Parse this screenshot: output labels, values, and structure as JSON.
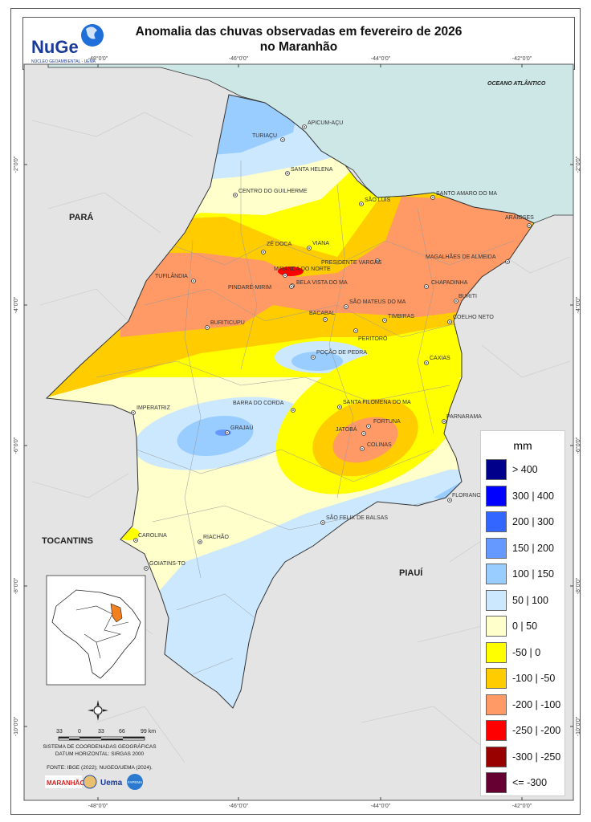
{
  "header": {
    "title_line1": "Anomalia das chuvas observadas em fevereiro de 2026",
    "title_line2": "no Maranhão",
    "logo_text": "NuGeo",
    "logo_subtitle": "NÚCLEO GEOAMBIENTAL - UEMA"
  },
  "coordinates": {
    "longitudes": [
      "-48°0'0\"",
      "-46°0'0\"",
      "-44°0'0\"",
      "-42°0'0\""
    ],
    "latitudes": [
      "-2°0'0\"",
      "-4°0'0\"",
      "-6°0'0\"",
      "-8°0'0\"",
      "-10°0'0\""
    ]
  },
  "map_labels": {
    "ocean": "OCEANO ATLÂNTICO",
    "states": [
      "PARÁ",
      "TOCANTINS",
      "PIAUÍ"
    ]
  },
  "cities": [
    "TURIAÇU",
    "APICUM-AÇU",
    "SANTA HELENA",
    "CENTRO DO GUILHERME",
    "SÃO LUÍS",
    "SANTO AMARO DO MA",
    "ARAIOSES",
    "ZÉ DOCA",
    "VIANA",
    "PRESIDENTE VARGAS",
    "MAGALHÃES DE ALMEIDA",
    "MIRANDA DO NORTE",
    "TUFILÂNDIA",
    "PINDARÉ-MIRIM",
    "BELA VISTA DO MA",
    "CHAPADINHA",
    "BURITI",
    "SÃO MATEUS DO MA",
    "BURITICUPU",
    "BACABAL",
    "TIMBIRAS",
    "COELHO NETO",
    "PERITORÓ",
    "POÇÃO DE PEDRA",
    "CAXIAS",
    "IMPERATRIZ",
    "BARRA DO CORDA",
    "SANTA FILOMENA DO MA",
    "GRAJAÚ",
    "FORTUNA",
    "JATOBÁ",
    "PARNARAMA",
    "COLINAS",
    "FLORIANO",
    "SÃO FELIX DE BALSAS",
    "CAROLINA",
    "RIACHÃO",
    "GOIATINS-TO"
  ],
  "legend": {
    "unit": "mm",
    "items": [
      {
        "label": "> 400",
        "color": "#00008b"
      },
      {
        "label": "300 | 400",
        "color": "#0000ff"
      },
      {
        "label": "200 | 300",
        "color": "#3366ff"
      },
      {
        "label": "150 | 200",
        "color": "#6699ff"
      },
      {
        "label": "100 | 150",
        "color": "#99ccff"
      },
      {
        "label": "50 | 100",
        "color": "#cce8ff"
      },
      {
        "label": "0 | 50",
        "color": "#ffffcc"
      },
      {
        "label": "-50 | 0",
        "color": "#ffff00"
      },
      {
        "label": "-100 | -50",
        "color": "#ffcc00"
      },
      {
        "label": "-200 | -100",
        "color": "#ff9966"
      },
      {
        "label": "-250 | -200",
        "color": "#ff0000"
      },
      {
        "label": "-300 | -250",
        "color": "#990000"
      },
      {
        "label": "<= -300",
        "color": "#660033"
      }
    ]
  },
  "scale": {
    "ticks": [
      "33",
      "0",
      "33",
      "66",
      "99 km"
    ]
  },
  "footer": {
    "crs_line1": "SISTEMA DE COORDENADAS GEOGRÁFICAS",
    "crs_line2": "DATUM HORIZONTAL: SIRGAS 2000",
    "source": "FONTE: IBGE (2022); NUGEO/UEMA (2024).",
    "logos": [
      "MARANHÃO",
      "UEMA",
      "FAPEMA"
    ]
  },
  "colors": {
    "ocean": "#cde6e6",
    "land_outside": "#e4e4e4"
  }
}
